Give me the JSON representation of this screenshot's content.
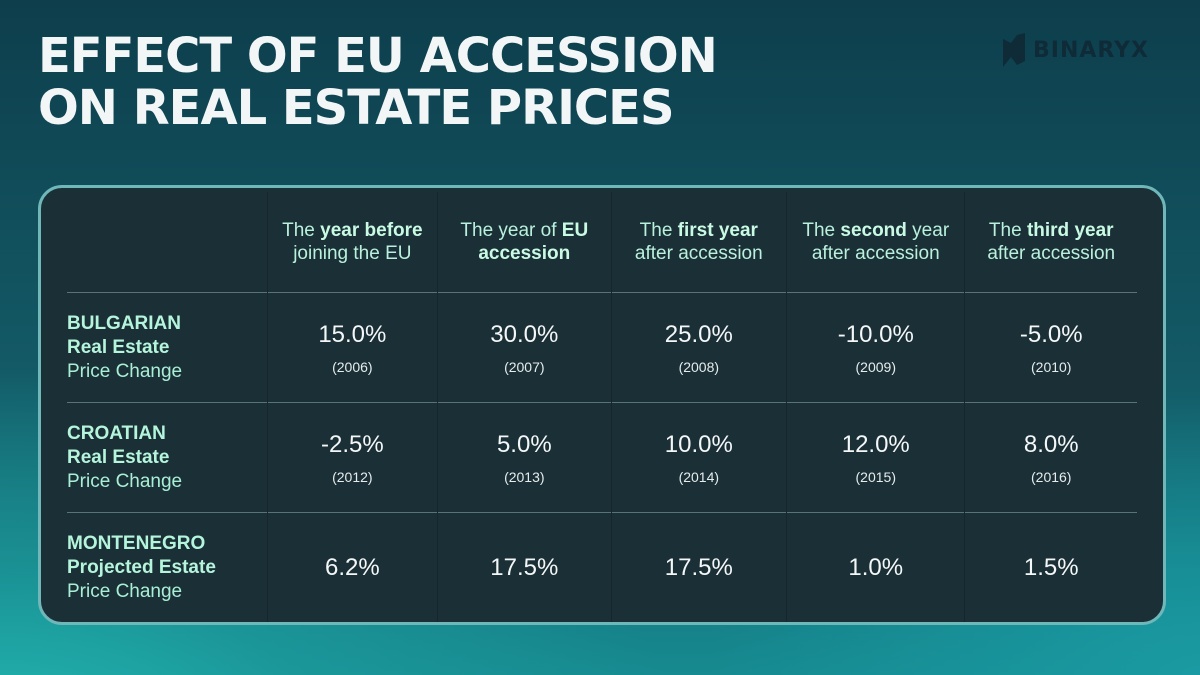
{
  "title_line1": "EFFECT OF EU ACCESSION",
  "title_line2": "ON REAL ESTATE PRICES",
  "logo": "BINARYX",
  "chart_data": {
    "type": "table",
    "columns": [
      [
        {
          "t": "The ",
          "b": false
        },
        {
          "t": "year",
          "b": true
        },
        {
          "t": " ",
          "b": false
        },
        {
          "t": "before",
          "b": true
        },
        {
          "t": " joining the EU",
          "b": false
        }
      ],
      [
        {
          "t": "The year of ",
          "b": false
        },
        {
          "t": "EU accession",
          "b": true
        }
      ],
      [
        {
          "t": "The ",
          "b": false
        },
        {
          "t": "first year",
          "b": true
        },
        {
          "t": " after accession",
          "b": false
        }
      ],
      [
        {
          "t": "The ",
          "b": false
        },
        {
          "t": "second",
          "b": true
        },
        {
          "t": " year after accession",
          "b": false
        }
      ],
      [
        {
          "t": "The ",
          "b": false
        },
        {
          "t": "third year",
          "b": true
        },
        {
          "t": " after accession",
          "b": false
        }
      ]
    ],
    "rows": [
      {
        "label_bold1": "BULGARIAN",
        "label_bold2": "Real Estate",
        "label_rest": "Price Change",
        "values": [
          "15.0%",
          "30.0%",
          "25.0%",
          "-10.0%",
          "-5.0%"
        ],
        "years": [
          "(2006)",
          "(2007)",
          "(2008)",
          "(2009)",
          "(2010)"
        ]
      },
      {
        "label_bold1": "CROATIAN",
        "label_bold2": "Real Estate",
        "label_rest": "Price Change",
        "values": [
          "-2.5%",
          "5.0%",
          "10.0%",
          "12.0%",
          "8.0%"
        ],
        "years": [
          "(2012)",
          "(2013)",
          "(2014)",
          "(2015)",
          "(2016)"
        ]
      },
      {
        "label_bold1": "MONTENEGRO",
        "label_bold2": "Projected Estate",
        "label_rest": "Price Change",
        "values": [
          "6.2%",
          "17.5%",
          "17.5%",
          "1.0%",
          "1.5%"
        ],
        "years": []
      }
    ]
  }
}
